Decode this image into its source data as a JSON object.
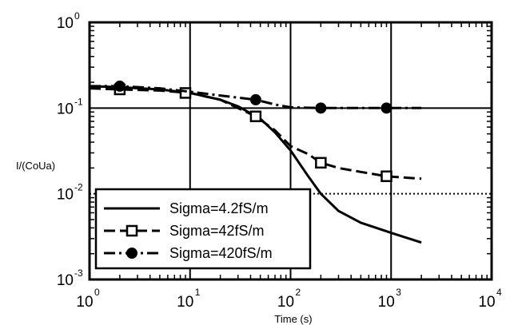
{
  "chart_data": {
    "type": "line",
    "xlabel": "Time (s)",
    "ylabel": "I/(CoUa)",
    "xscale": "log",
    "yscale": "log",
    "xlim": [
      1,
      10000
    ],
    "ylim": [
      0.001,
      1
    ],
    "x_ticks": [
      {
        "base": "10",
        "exp": "0",
        "value": 1
      },
      {
        "base": "10",
        "exp": "1",
        "value": 10
      },
      {
        "base": "10",
        "exp": "2",
        "value": 100
      },
      {
        "base": "10",
        "exp": "3",
        "value": 1000
      },
      {
        "base": "10",
        "exp": "4",
        "value": 10000
      }
    ],
    "y_ticks": [
      {
        "base": "10",
        "exp": "-3",
        "value": 0.001
      },
      {
        "base": "10",
        "exp": "-2",
        "value": 0.01
      },
      {
        "base": "10",
        "exp": "-1",
        "value": 0.1
      },
      {
        "base": "10",
        "exp": "0",
        "value": 1
      }
    ],
    "grid": "major",
    "legend_position": "lower-left",
    "series": [
      {
        "name": "Sigma=4.2fS/m",
        "style": "solid",
        "marker": "none",
        "color": "#000000",
        "x": [
          1,
          2,
          5,
          10,
          20,
          30,
          50,
          70,
          100,
          150,
          200,
          300,
          500,
          1000,
          2000
        ],
        "y": [
          0.18,
          0.175,
          0.165,
          0.15,
          0.125,
          0.105,
          0.075,
          0.052,
          0.032,
          0.016,
          0.01,
          0.0063,
          0.0046,
          0.0035,
          0.0027
        ]
      },
      {
        "name": "Sigma=42fS/m",
        "style": "dashed",
        "marker": "square",
        "color": "#000000",
        "x": [
          1,
          2,
          5,
          10,
          20,
          45,
          70,
          100,
          150,
          200,
          300,
          500,
          900,
          2000
        ],
        "y": [
          0.17,
          0.165,
          0.16,
          0.15,
          0.125,
          0.08,
          0.055,
          0.036,
          0.029,
          0.023,
          0.02,
          0.018,
          0.016,
          0.015
        ],
        "marker_x": [
          2,
          9,
          45,
          200,
          900
        ],
        "marker_y": [
          0.165,
          0.15,
          0.08,
          0.023,
          0.016
        ]
      },
      {
        "name": "Sigma=420fS/m",
        "style": "dashdot",
        "marker": "circle",
        "color": "#000000",
        "x": [
          1,
          2,
          5,
          10,
          20,
          45,
          70,
          100,
          200,
          500,
          900,
          2000
        ],
        "y": [
          0.18,
          0.18,
          0.17,
          0.155,
          0.14,
          0.125,
          0.11,
          0.102,
          0.1,
          0.1,
          0.1,
          0.1
        ],
        "marker_x": [
          2,
          45,
          200,
          900
        ],
        "marker_y": [
          0.18,
          0.125,
          0.1,
          0.1
        ]
      }
    ]
  }
}
